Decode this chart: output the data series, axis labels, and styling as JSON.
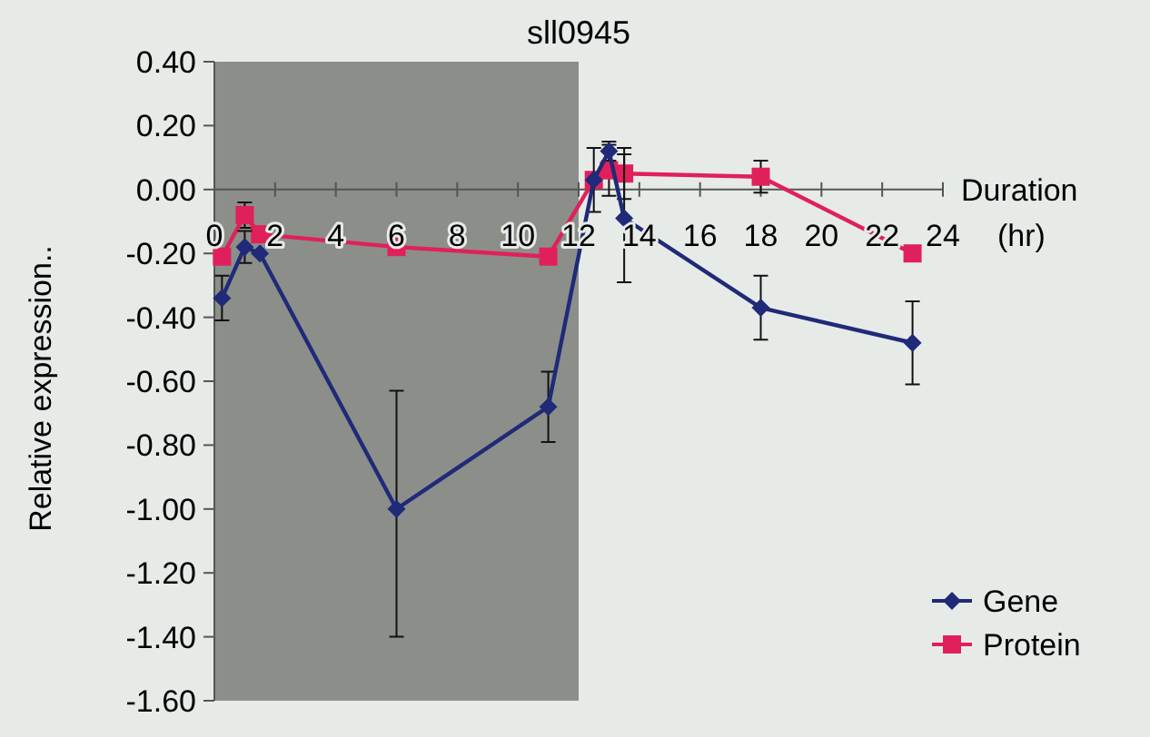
{
  "chart_data": {
    "type": "line",
    "title": "sll0945",
    "xlabel": "Duration (hr)",
    "ylabel": "Relative expression..",
    "x": [
      0.25,
      1,
      1.5,
      6,
      11,
      12.5,
      13,
      13.5,
      18,
      23
    ],
    "xlim": [
      0,
      24
    ],
    "xticks": [
      0,
      2,
      4,
      6,
      8,
      10,
      12,
      14,
      16,
      18,
      20,
      22,
      24
    ],
    "ylim": [
      -1.6,
      0.4
    ],
    "yticks": [
      {
        "value": 0.4,
        "label": "0.40"
      },
      {
        "value": 0.2,
        "label": "0.20"
      },
      {
        "value": 0,
        "label": "0.00"
      },
      {
        "value": -0.2,
        "label": "-0.20"
      },
      {
        "value": -0.4,
        "label": "-0.40"
      },
      {
        "value": -0.6,
        "label": "-0.60"
      },
      {
        "value": -0.8,
        "label": "-0.80"
      },
      {
        "value": -1,
        "label": "-1.00"
      },
      {
        "value": -1.2,
        "label": "-1.20"
      },
      {
        "value": -1.4,
        "label": "-1.40"
      },
      {
        "value": -1.6,
        "label": "-1.60"
      }
    ],
    "series": [
      {
        "name": "Gene",
        "color": "#1f2a78",
        "marker": "diamond",
        "values": [
          -0.34,
          -0.18,
          -0.2,
          -1.0,
          -0.68,
          0.03,
          0.12,
          -0.09,
          -0.37,
          -0.48
        ],
        "errors": [
          0.07,
          0.05,
          null,
          [
            -1.4,
            -0.63
          ],
          0.11,
          0.1,
          0.03,
          0.2,
          0.1,
          0.13
        ]
      },
      {
        "name": "Protein",
        "color": "#e0205a",
        "marker": "square",
        "values": [
          -0.21,
          -0.08,
          -0.14,
          -0.18,
          -0.21,
          0.03,
          0.06,
          0.05,
          0.04,
          -0.2
        ],
        "errors": [
          null,
          0.04,
          null,
          null,
          null,
          null,
          0.08,
          0.08,
          0.05,
          null
        ]
      }
    ],
    "bands": [
      {
        "axis": "x",
        "from": 0,
        "to": 12,
        "color": "#8c8e8a"
      }
    ],
    "legend": "bottom right",
    "grid": false
  }
}
